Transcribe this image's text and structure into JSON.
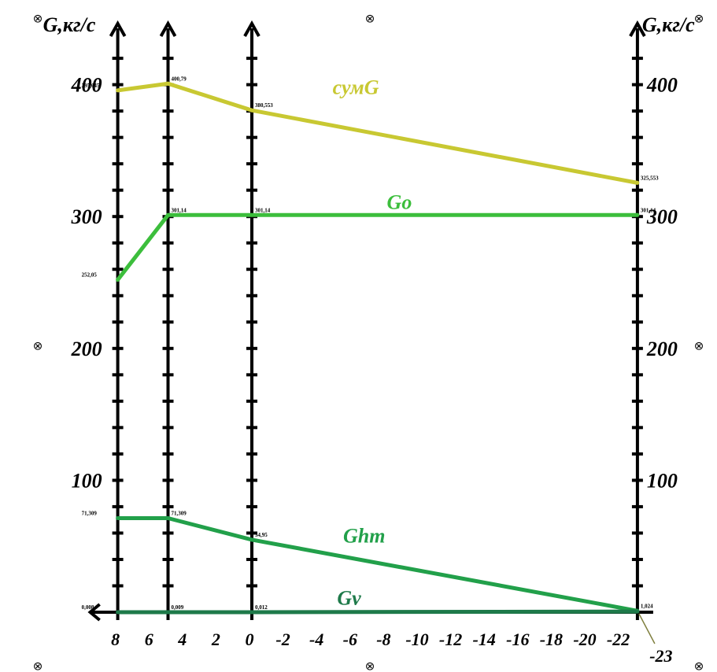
{
  "chart_data": {
    "type": "line",
    "y_title_left": "G,кг/с",
    "y_title_right": "G,кг/с",
    "ylim": [
      0,
      400
    ],
    "y_ticks": [
      "100",
      "200",
      "300",
      "400"
    ],
    "x_ticks": [
      "8",
      "6",
      "4",
      "2",
      "0",
      "-2",
      "-4",
      "-6",
      "-8",
      "-10",
      "-12",
      "-14",
      "-16",
      "-18",
      "-20",
      "-22"
    ],
    "x_end_label": "-23",
    "vertical_axes_x": [
      8,
      5,
      0,
      -23
    ],
    "series": [
      {
        "name": "сумG",
        "color": "#c8c832",
        "x": [
          8,
          5,
          0,
          -23
        ],
        "y": [
          395.645,
          400.79,
          380.553,
          325.553
        ],
        "point_labels": [
          "395,645",
          "400,79",
          "380,553",
          "325,553"
        ]
      },
      {
        "name": "Go",
        "color": "#3cbe3c",
        "x": [
          8,
          5,
          0,
          -23
        ],
        "y": [
          252.05,
          301.14,
          301.14,
          301.14
        ],
        "point_labels": [
          "252,05",
          "301,14",
          "301,14",
          "301,14"
        ]
      },
      {
        "name": "Ghm",
        "color": "#22a04a",
        "x": [
          8,
          5,
          0,
          -23
        ],
        "y": [
          71.309,
          71.309,
          54.95,
          1.02
        ],
        "point_labels": [
          "71,309",
          "71,309",
          "54,95",
          "1,024"
        ]
      },
      {
        "name": "Gv",
        "color": "#1e7a4a",
        "x": [
          8,
          5,
          0,
          -23
        ],
        "y": [
          0.008,
          0.009,
          0.012,
          0.5
        ],
        "point_labels": [
          "0,008",
          "0,009",
          "0,012",
          ""
        ]
      }
    ],
    "registration_marks": [
      "⊗",
      "⊗",
      "⊗",
      "⊗",
      "⊗",
      "⊗",
      "⊗",
      "⊗"
    ]
  }
}
